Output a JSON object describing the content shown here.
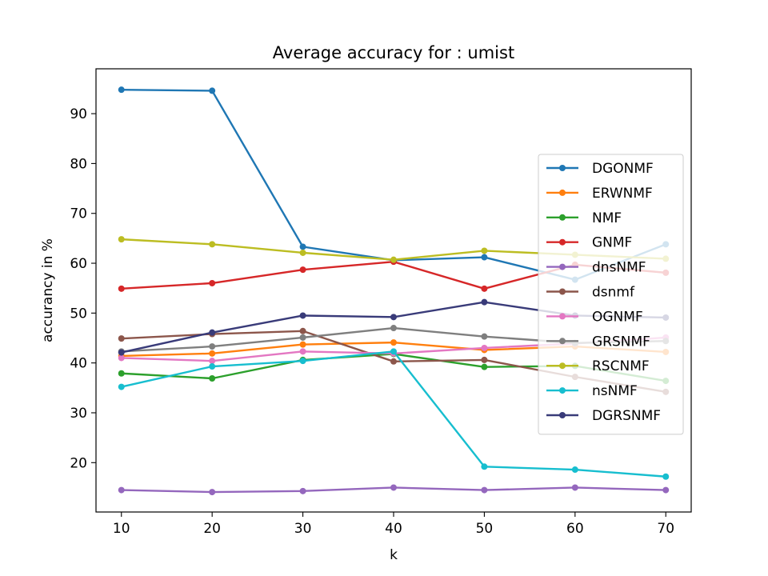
{
  "chart_data": {
    "type": "line",
    "title": "Average accuracy for : umist",
    "xlabel": "k",
    "ylabel": "accurancy in %",
    "x": [
      10,
      20,
      30,
      40,
      50,
      60,
      70
    ],
    "xticks": [
      10,
      20,
      30,
      40,
      50,
      60,
      70
    ],
    "yticks": [
      20,
      30,
      40,
      50,
      60,
      70,
      80,
      90
    ],
    "xlim": [
      7.2,
      72.8
    ],
    "ylim": [
      10.1,
      99.0
    ],
    "grid": false,
    "legend_position": "center-right",
    "series": [
      {
        "name": "DGONMF",
        "color": "#1f77b4",
        "values": [
          94.8,
          94.6,
          63.3,
          60.6,
          61.2,
          56.7,
          63.8
        ]
      },
      {
        "name": "ERWNMF",
        "color": "#ff7f0e",
        "values": [
          41.4,
          41.9,
          43.7,
          44.1,
          42.6,
          43.3,
          42.2
        ]
      },
      {
        "name": "NMF",
        "color": "#2ca02c",
        "values": [
          37.9,
          36.9,
          40.6,
          41.8,
          39.2,
          39.4,
          36.4
        ]
      },
      {
        "name": "GNMF",
        "color": "#d62728",
        "values": [
          54.9,
          56.0,
          58.7,
          60.3,
          54.9,
          59.7,
          58.1
        ]
      },
      {
        "name": "dnsNMF",
        "color": "#9467bd",
        "values": [
          14.5,
          14.1,
          14.3,
          15.0,
          14.5,
          15.0,
          14.5
        ]
      },
      {
        "name": "dsnmf",
        "color": "#8c564b",
        "values": [
          44.9,
          45.8,
          46.4,
          40.3,
          40.6,
          37.2,
          34.2
        ]
      },
      {
        "name": "OGNMF",
        "color": "#e377c2",
        "values": [
          41.0,
          40.4,
          42.3,
          41.9,
          43.0,
          43.9,
          45.1
        ]
      },
      {
        "name": "GRSNMF",
        "color": "#7f7f7f",
        "values": [
          42.3,
          43.3,
          45.1,
          47.0,
          45.3,
          44.0,
          44.4
        ]
      },
      {
        "name": "RSCNMF",
        "color": "#bcbd22",
        "values": [
          64.8,
          63.8,
          62.1,
          60.7,
          62.5,
          61.7,
          60.9
        ]
      },
      {
        "name": "nsNMF",
        "color": "#17becf",
        "values": [
          35.2,
          39.3,
          40.4,
          42.3,
          19.2,
          18.6,
          17.2
        ]
      },
      {
        "name": "DGRSNMF",
        "color": "#393b79",
        "values": [
          42.1,
          46.1,
          49.5,
          49.2,
          52.2,
          49.5,
          49.1
        ]
      }
    ]
  }
}
